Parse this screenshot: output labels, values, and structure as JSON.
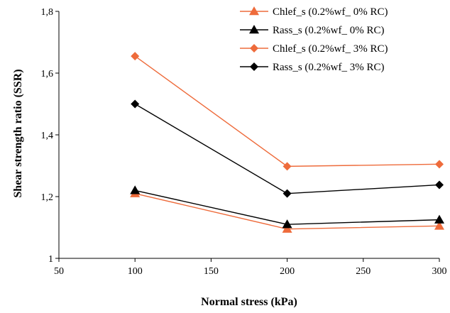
{
  "chart_data": {
    "type": "line",
    "title": "",
    "xlabel": "Normal stress (kPa)",
    "ylabel": "Shear strength ratio (SSR)",
    "xlim": [
      50,
      300
    ],
    "ylim": [
      1,
      1.8
    ],
    "xticks": [
      50,
      100,
      150,
      200,
      250,
      300
    ],
    "xtick_labels": [
      "50",
      "100",
      "150",
      "200",
      "250",
      "300"
    ],
    "yticks": [
      1,
      1.2,
      1.4,
      1.6,
      1.8
    ],
    "ytick_labels": [
      "1",
      "1,2",
      "1,4",
      "1,6",
      "1,8"
    ],
    "grid": false,
    "legend_position": "top-right",
    "x": [
      100,
      200,
      300
    ],
    "series": [
      {
        "name": "Chlef_s (0.2%wf_ 0% RC)",
        "marker": "triangle",
        "color": "#ee6b3b",
        "values": [
          1.21,
          1.095,
          1.105
        ]
      },
      {
        "name": "Rass_s (0.2%wf_ 0% RC)",
        "marker": "triangle",
        "color": "#000000",
        "values": [
          1.22,
          1.11,
          1.125
        ]
      },
      {
        "name": "Chlef_s (0.2%wf_ 3% RC)",
        "marker": "diamond",
        "color": "#ee6b3b",
        "values": [
          1.655,
          1.298,
          1.305
        ]
      },
      {
        "name": "Rass_s (0.2%wf_ 3% RC)",
        "marker": "diamond",
        "color": "#000000",
        "values": [
          1.5,
          1.21,
          1.238
        ]
      }
    ]
  }
}
